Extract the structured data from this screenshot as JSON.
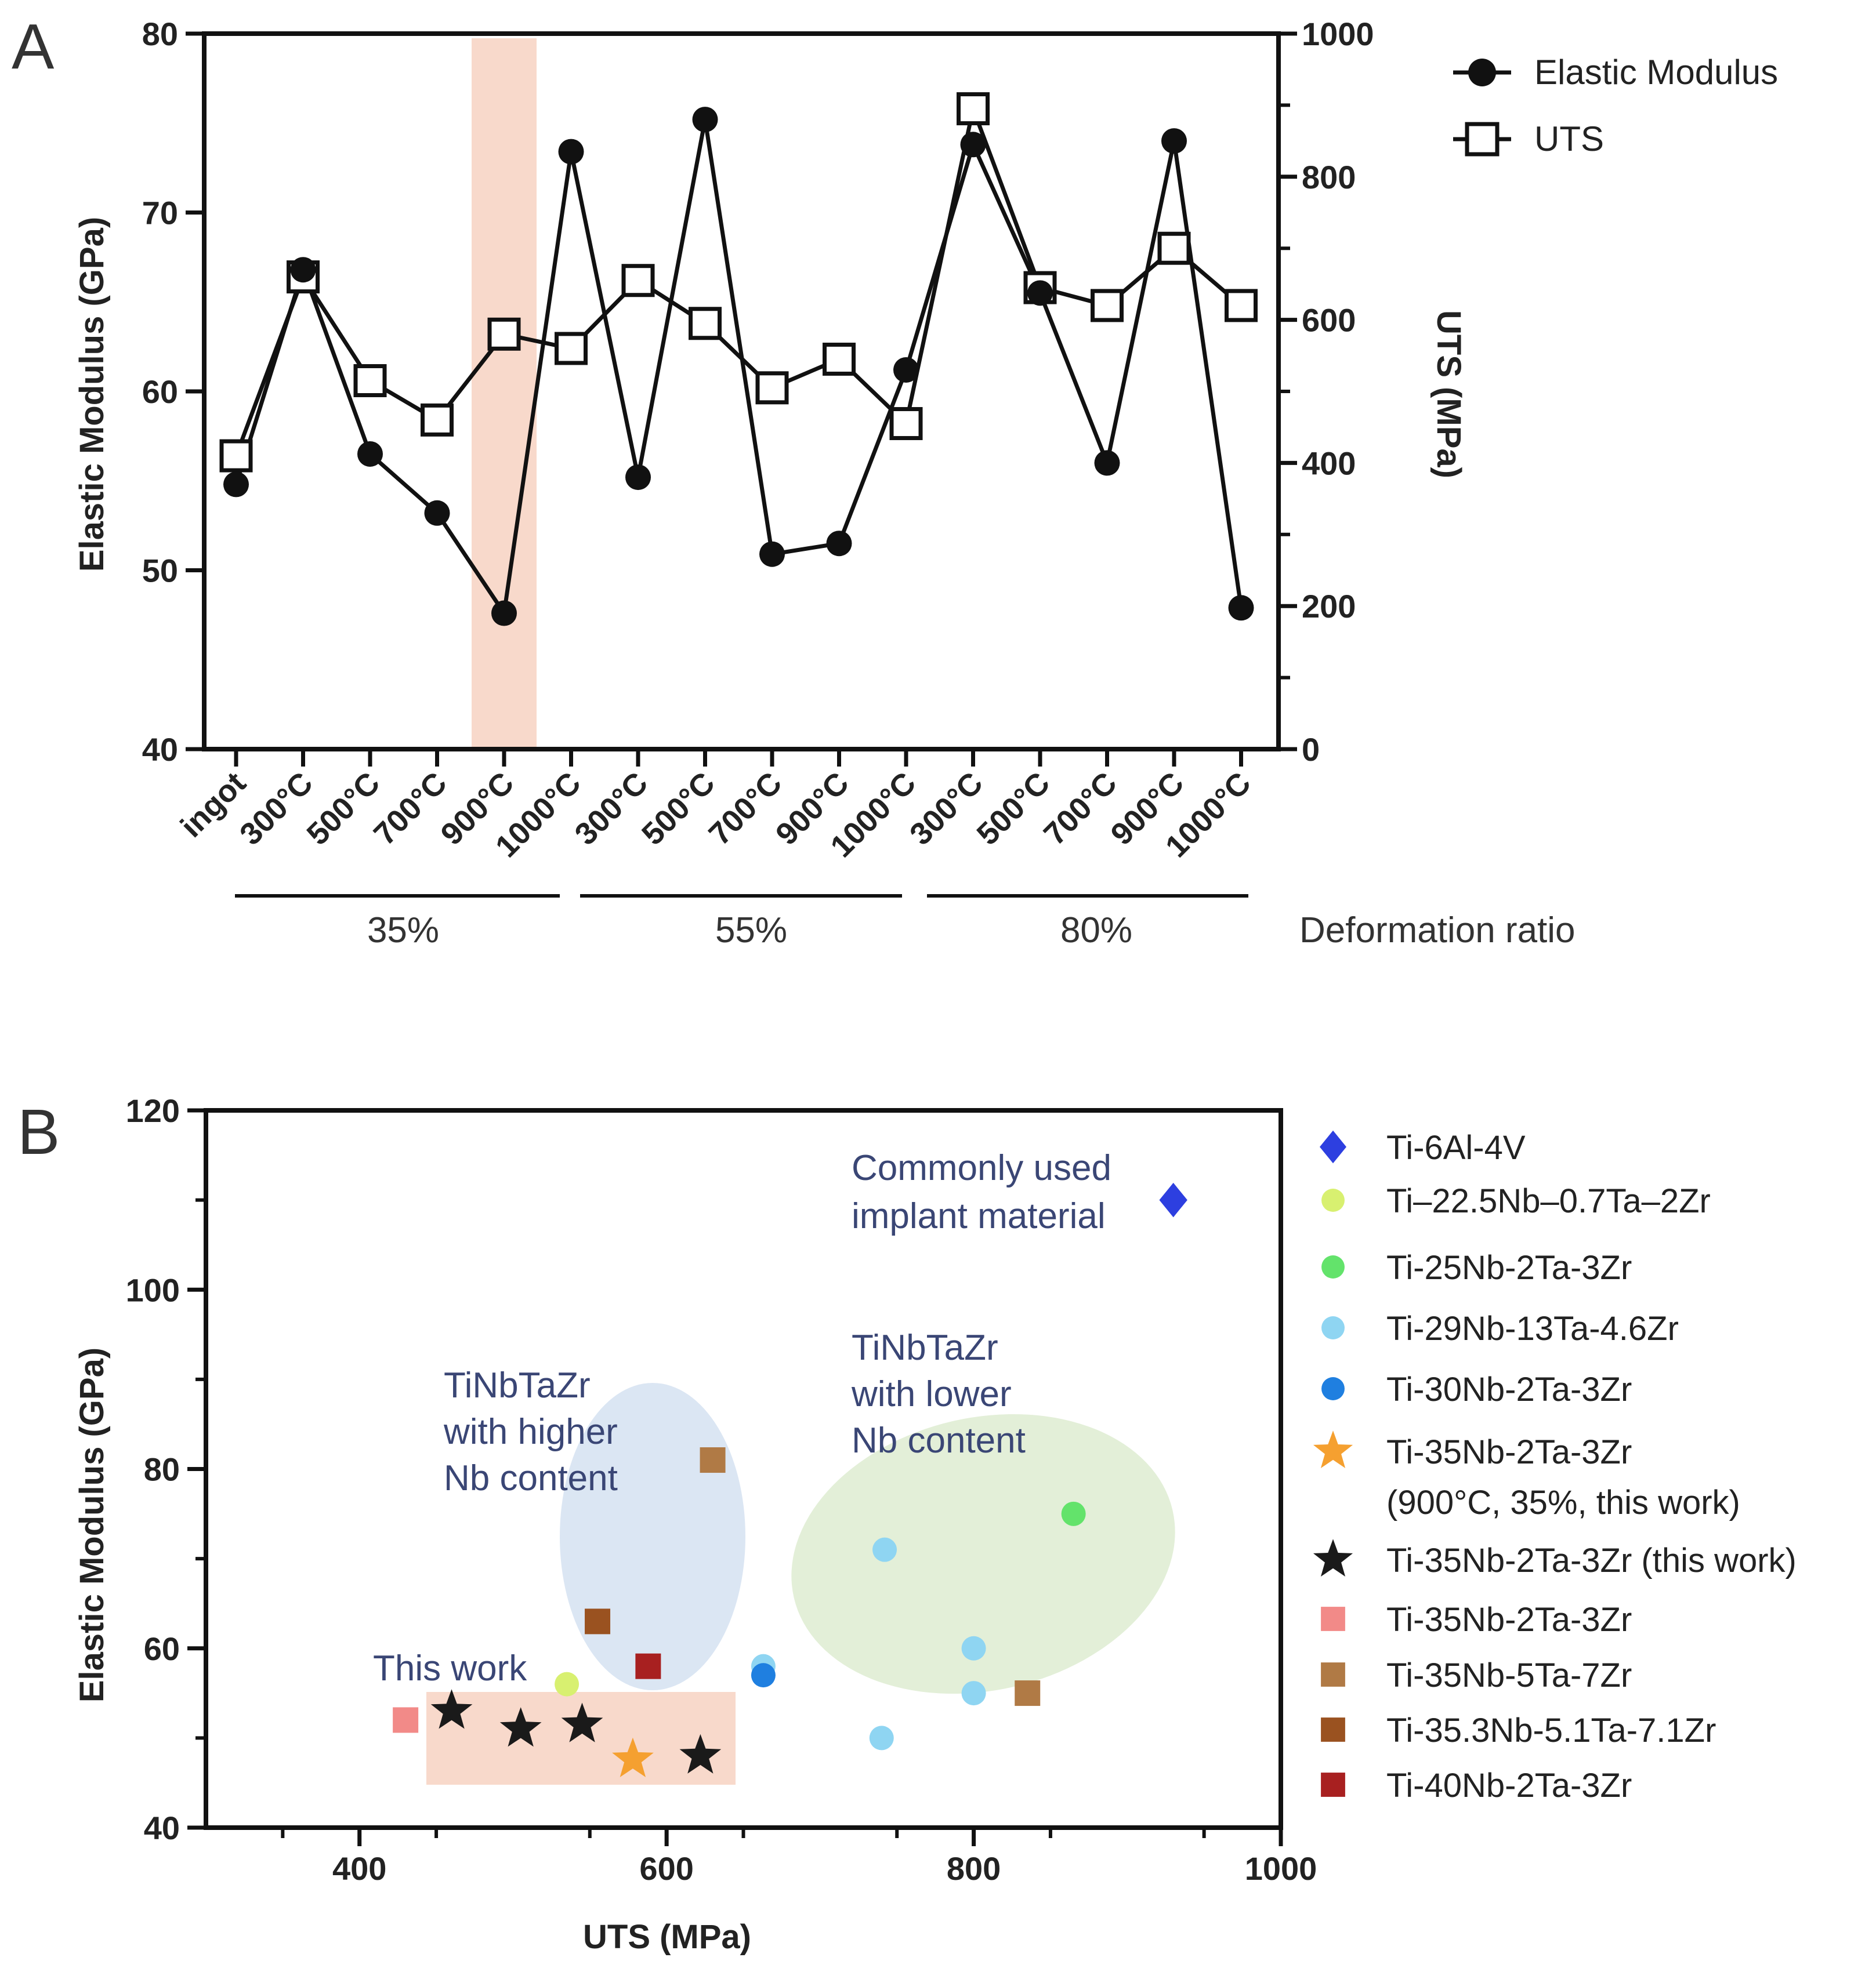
{
  "panel_a": {
    "letter": "A",
    "deformation_title": "Deformation ratio",
    "groups": [
      "35%",
      "55%",
      "80%"
    ]
  },
  "panel_b": {
    "letter": "B",
    "annotations": {
      "commonly": [
        "Commonly used",
        "implant material"
      ],
      "higher": [
        "TiNbTaZr",
        "with higher",
        "Nb content"
      ],
      "lower": [
        "TiNbTaZr",
        "with lower",
        "Nb content"
      ],
      "this_work": "This work"
    }
  },
  "colors": {
    "ti64": "#2d3fe0",
    "ti225": "#d8f070",
    "ti25": "#63e36b",
    "ti29": "#8fd5f2",
    "ti30": "#1f7fe0",
    "star_orange": "#f5a030",
    "star_black": "#1a1a1a",
    "sq_pink": "#f28a88",
    "sq_tan": "#b07a45",
    "sq_brown": "#9a5220",
    "sq_red": "#a82020",
    "annotation": "#3a4675",
    "band_pink": "#f8d9cb",
    "ellipse_blue": "#dbe6f3",
    "ellipse_green": "#e3efd8"
  },
  "chart_data": [
    {
      "type": "line",
      "title": "",
      "categories": [
        "ingot",
        "300°C",
        "500°C",
        "700°C",
        "900°C",
        "1000°C",
        "300°C",
        "500°C",
        "700°C",
        "900°C",
        "1000°C",
        "300°C",
        "500°C",
        "700°C",
        "900°C",
        "1000°C"
      ],
      "ylabel": "Elastic Modulus (GPa)",
      "y2label": "UTS (MPa)",
      "ylim": [
        40,
        80
      ],
      "yticks": [
        40,
        50,
        60,
        70,
        80
      ],
      "y2lim": [
        0,
        1000
      ],
      "y2ticks": [
        0,
        200,
        400,
        600,
        800,
        1000
      ],
      "highlight_category": "900°C (35%)",
      "series": [
        {
          "name": "Elastic Modulus",
          "axis": "left",
          "marker": "filled-circle",
          "values": [
            54.8,
            66.8,
            56.5,
            53.2,
            47.6,
            73.4,
            55.2,
            75.2,
            50.9,
            51.5,
            61.2,
            73.8,
            65.5,
            56.0,
            74.0,
            47.9
          ]
        },
        {
          "name": "UTS",
          "axis": "right",
          "marker": "open-square",
          "values": [
            410,
            660,
            515,
            460,
            580,
            560,
            655,
            595,
            505,
            545,
            455,
            895,
            645,
            620,
            700,
            620
          ]
        }
      ]
    },
    {
      "type": "scatter",
      "xlabel": "UTS (MPa)",
      "ylabel": "Elastic Modulus (GPa)",
      "xlim": [
        300,
        1000
      ],
      "xticks": [
        400,
        600,
        800,
        1000
      ],
      "ylim": [
        40,
        120
      ],
      "yticks": [
        40,
        60,
        80,
        100,
        120
      ],
      "series": [
        {
          "name": "Ti-6Al-4V",
          "marker": "diamond",
          "color_key": "ti64",
          "points": [
            [
              930,
              110
            ]
          ]
        },
        {
          "name": "Ti–22.5Nb–0.7Ta–2Zr",
          "marker": "circle",
          "color_key": "ti225",
          "points": [
            [
              535,
              56
            ]
          ]
        },
        {
          "name": "Ti-25Nb-2Ta-3Zr",
          "marker": "circle",
          "color_key": "ti25",
          "points": [
            [
              865,
              75
            ]
          ]
        },
        {
          "name": "Ti-29Nb-13Ta-4.6Zr",
          "marker": "circle",
          "color_key": "ti29",
          "points": [
            [
              742,
              71
            ],
            [
              800,
              60
            ],
            [
              800,
              55
            ],
            [
              740,
              50
            ],
            [
              663,
              58
            ]
          ]
        },
        {
          "name": "Ti-30Nb-2Ta-3Zr",
          "marker": "circle",
          "color_key": "ti30",
          "points": [
            [
              663,
              57
            ]
          ]
        },
        {
          "name": "Ti-35Nb-2Ta-3Zr",
          "name2": "(900°C, 35%, this work)",
          "marker": "star",
          "color_key": "star_orange",
          "points": [
            [
              578,
              47.6
            ]
          ]
        },
        {
          "name": "Ti-35Nb-2Ta-3Zr (this work)",
          "marker": "star",
          "color_key": "star_black",
          "points": [
            [
              460,
              53
            ],
            [
              505,
              51
            ],
            [
              545,
              51.5
            ],
            [
              622,
              48
            ]
          ]
        },
        {
          "name": "Ti-35Nb-2Ta-3Zr",
          "marker": "square",
          "color_key": "sq_pink",
          "points": [
            [
              430,
              52
            ]
          ]
        },
        {
          "name": "Ti-35Nb-5Ta-7Zr",
          "marker": "square",
          "color_key": "sq_tan",
          "points": [
            [
              630,
              81
            ],
            [
              835,
              55
            ]
          ]
        },
        {
          "name": "Ti-35.3Nb-5.1Ta-7.1Zr",
          "marker": "square",
          "color_key": "sq_brown",
          "points": [
            [
              555,
              63
            ]
          ]
        },
        {
          "name": "Ti-40Nb-2Ta-3Zr",
          "marker": "square",
          "color_key": "sq_red",
          "points": [
            [
              588,
              58
            ]
          ]
        }
      ]
    }
  ]
}
